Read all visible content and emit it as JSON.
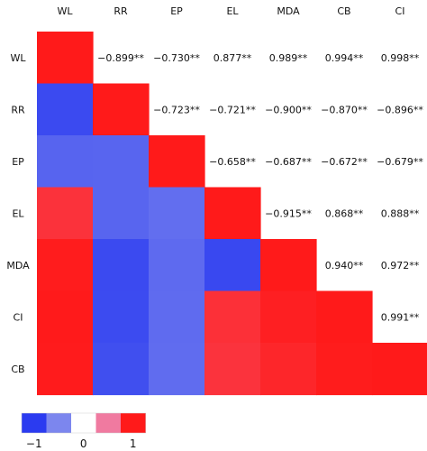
{
  "chart_data": {
    "type": "heatmap",
    "columns": [
      "WL",
      "RR",
      "EP",
      "EL",
      "MDA",
      "CB",
      "CI"
    ],
    "rows": [
      "WL",
      "RR",
      "EP",
      "EL",
      "MDA",
      "CI",
      "CB"
    ],
    "lower_triangle_values": [
      [
        1
      ],
      [
        -0.899,
        1
      ],
      [
        -0.73,
        -0.723,
        1
      ],
      [
        0.877,
        -0.721,
        -0.658,
        1
      ],
      [
        0.989,
        -0.9,
        -0.687,
        -0.915,
        1
      ],
      [
        0.998,
        -0.896,
        -0.679,
        0.888,
        0.972,
        1
      ],
      [
        0.994,
        -0.87,
        -0.672,
        0.868,
        0.94,
        0.991,
        1
      ]
    ],
    "upper_labels": [
      {
        "row": "WL",
        "col": "RR",
        "text": "−0.899**"
      },
      {
        "row": "WL",
        "col": "EP",
        "text": "−0.730**"
      },
      {
        "row": "WL",
        "col": "EL",
        "text": "0.877**"
      },
      {
        "row": "WL",
        "col": "MDA",
        "text": "0.989**"
      },
      {
        "row": "WL",
        "col": "CB",
        "text": "0.994**"
      },
      {
        "row": "WL",
        "col": "CI",
        "text": "0.998**"
      },
      {
        "row": "RR",
        "col": "EP",
        "text": "−0.723**"
      },
      {
        "row": "RR",
        "col": "EL",
        "text": "−0.721**"
      },
      {
        "row": "RR",
        "col": "MDA",
        "text": "−0.900**"
      },
      {
        "row": "RR",
        "col": "CB",
        "text": "−0.870**"
      },
      {
        "row": "RR",
        "col": "CI",
        "text": "−0.896**"
      },
      {
        "row": "EP",
        "col": "EL",
        "text": "−0.658**"
      },
      {
        "row": "EP",
        "col": "MDA",
        "text": "−0.687**"
      },
      {
        "row": "EP",
        "col": "CB",
        "text": "−0.672**"
      },
      {
        "row": "EP",
        "col": "CI",
        "text": "−0.679**"
      },
      {
        "row": "EL",
        "col": "MDA",
        "text": "−0.915**"
      },
      {
        "row": "EL",
        "col": "CB",
        "text": "0.868**"
      },
      {
        "row": "EL",
        "col": "CI",
        "text": "0.888**"
      },
      {
        "row": "MDA",
        "col": "CB",
        "text": "0.940**"
      },
      {
        "row": "MDA",
        "col": "CI",
        "text": "0.972**"
      },
      {
        "row": "CI",
        "col": "CI",
        "text": "0.991**"
      }
    ],
    "color_scale": {
      "min": -1,
      "max": 1,
      "colors": [
        "#2b3bf0",
        "#7c86ee",
        "#ffffff",
        "#f07aa0",
        "#ff1a1a"
      ],
      "tick_labels": [
        "−1",
        "0",
        "1"
      ]
    }
  }
}
